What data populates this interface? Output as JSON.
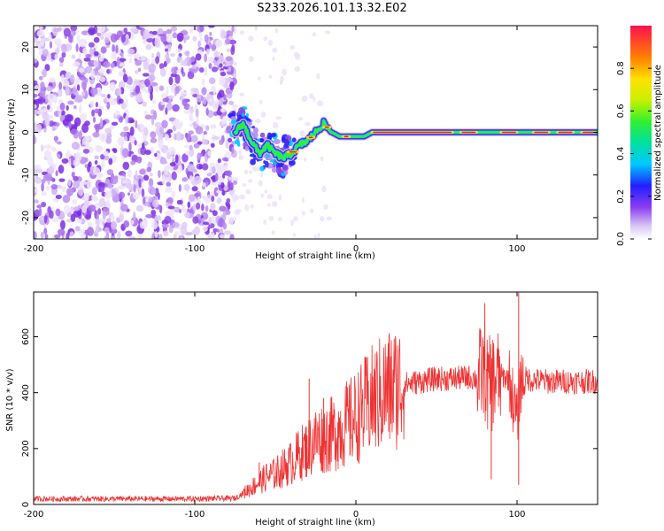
{
  "title": "S233.2026.101.13.32.E02",
  "chart_data": [
    {
      "type": "heatmap",
      "name": "spectrogram",
      "xlabel": "Height of straight line (km)",
      "ylabel": "Frequency (Hz)",
      "xlim": [
        -200,
        150
      ],
      "ylim": [
        -25,
        25
      ],
      "xticks": [
        -200,
        -100,
        0,
        100
      ],
      "yticks": [
        -20,
        -10,
        0,
        10,
        20
      ],
      "colorbar": {
        "label": "Normalized spectral amplitude",
        "range": [
          0,
          1
        ],
        "ticks": [
          0.0,
          0.2,
          0.4,
          0.6,
          0.8
        ]
      },
      "noise_region_x": [
        -200,
        -75
      ],
      "signal_track": {
        "x": [
          -75,
          -70,
          -65,
          -60,
          -55,
          -50,
          -45,
          -40,
          -35,
          -30,
          -25,
          -20,
          -15,
          -10,
          -5,
          0,
          5,
          10,
          20,
          40,
          60,
          80,
          100,
          120,
          150
        ],
        "freq": [
          0,
          2,
          -2,
          -5,
          -3,
          -5,
          -6,
          -5,
          -3,
          -2,
          0,
          2,
          0,
          -1,
          -1,
          -1,
          -1,
          0,
          0,
          0,
          0,
          0,
          0,
          0,
          0
        ]
      }
    },
    {
      "type": "line",
      "name": "snr",
      "xlabel": "Height of straight line (km)",
      "ylabel": "SNR (10 * v/v)",
      "xlim": [
        -200,
        150
      ],
      "ylim": [
        0,
        760
      ],
      "xticks": [
        -200,
        -100,
        0,
        100
      ],
      "yticks": [
        0,
        200,
        400,
        600
      ],
      "color": "#ee3333",
      "series": [
        {
          "name": "SNR",
          "x": [
            -200,
            -150,
            -100,
            -75,
            -70,
            -65,
            -60,
            -55,
            -50,
            -45,
            -40,
            -35,
            -30,
            -25,
            -20,
            -15,
            -10,
            -5,
            0,
            5,
            10,
            15,
            20,
            30,
            40,
            50,
            60,
            70,
            75,
            80,
            82,
            85,
            90,
            95,
            100,
            102,
            105,
            110,
            120,
            130,
            140,
            150
          ],
          "y": [
            20,
            20,
            20,
            22,
            40,
            60,
            80,
            100,
            110,
            130,
            150,
            180,
            200,
            230,
            240,
            250,
            270,
            290,
            310,
            340,
            370,
            390,
            410,
            430,
            440,
            450,
            450,
            455,
            450,
            480,
            420,
            440,
            460,
            450,
            300,
            440,
            450,
            445,
            440,
            440,
            440,
            440
          ]
        }
      ],
      "spikes": [
        {
          "x": -60,
          "y": 150
        },
        {
          "x": -29,
          "y": 450
        },
        {
          "x": -20,
          "y": 380
        },
        {
          "x": 80,
          "y": 720
        },
        {
          "x": 84,
          "y": 90
        },
        {
          "x": 101,
          "y": 70
        },
        {
          "x": 101,
          "y": 760
        }
      ]
    }
  ]
}
